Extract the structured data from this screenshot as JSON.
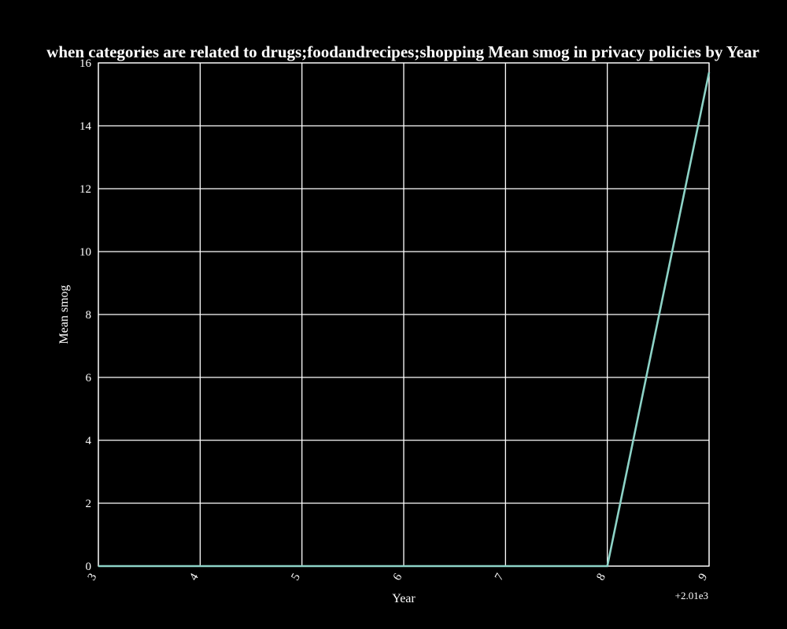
{
  "chart_data": {
    "type": "line",
    "title": "when categories are related to drugs;foodandrecipes;shopping Mean smog in privacy policies by Year",
    "xlabel": "Year",
    "ylabel": "Mean smog",
    "x_offset_label": "+2.01e3",
    "x_ticks": [
      3,
      4,
      5,
      6,
      7,
      8,
      9
    ],
    "y_ticks": [
      0,
      2,
      4,
      6,
      8,
      10,
      12,
      14,
      16
    ],
    "xlim": [
      2013,
      2019
    ],
    "ylim": [
      0,
      16
    ],
    "grid": true,
    "series": [
      {
        "x": [
          2013,
          2014,
          2015,
          2016,
          2017,
          2018,
          2019
        ],
        "y": [
          0,
          0,
          0,
          0,
          0,
          0,
          15.7
        ],
        "color": "#8dd3c7"
      }
    ],
    "background_color": "#000000",
    "foreground_color": "#ffffff"
  }
}
